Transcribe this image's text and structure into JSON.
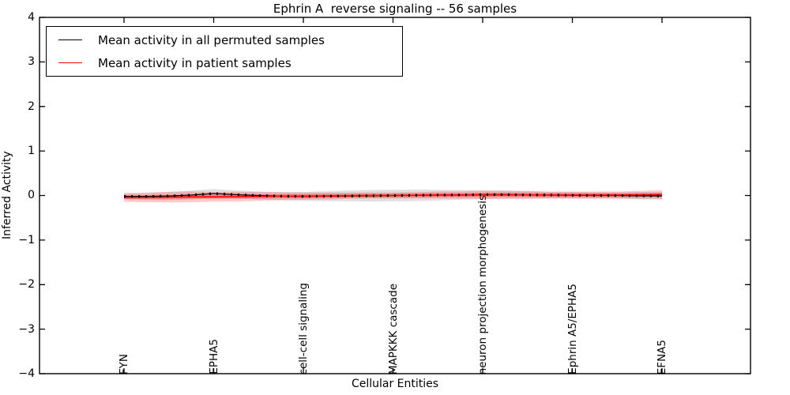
{
  "figure": {
    "title": "Ephrin A  reverse signaling -- 56 samples",
    "xlabel": "Cellular Entities",
    "ylabel": "Inferred Activity"
  },
  "chart_data": {
    "type": "line",
    "title": "Ephrin A  reverse signaling -- 56 samples",
    "xlabel": "Cellular Entities",
    "ylabel": "Inferred Activity",
    "ylim": [
      -4,
      4
    ],
    "ytick_values": [
      4,
      3,
      2,
      1,
      0,
      -1,
      -2,
      -3,
      -4
    ],
    "ytick_labels": [
      "4",
      "3",
      "2",
      "1",
      "0",
      "−1",
      "−2",
      "−3",
      "−4"
    ],
    "grid": false,
    "legend": {
      "position": "upper left",
      "entries": [
        {
          "label": "Mean activity in all permuted samples",
          "color": "#000000"
        },
        {
          "label": "Mean activity in patient samples",
          "color": "#ff0000"
        }
      ]
    },
    "categories": [
      "FYN",
      "EPHA5",
      "cell-cell signaling",
      "MAPKKK cascade",
      "neuron projection morphogenesis",
      "Ephrin A5/EPHA5",
      "EFNA5"
    ],
    "x": [
      0,
      0.25,
      0.5,
      0.75,
      1,
      1.25,
      1.5,
      1.75,
      2,
      2.25,
      2.5,
      2.75,
      3,
      3.25,
      3.5,
      3.75,
      4,
      4.25,
      4.5,
      4.75,
      5,
      5.25,
      5.5,
      5.75,
      6
    ],
    "series": [
      {
        "name": "Mean activity in all permuted samples",
        "color": "#000000",
        "line_style": "solid with dense square markers",
        "values": [
          -0.02,
          -0.02,
          -0.01,
          0.01,
          0.045,
          0.02,
          0,
          -0.015,
          -0.02,
          -0.015,
          -0.01,
          -0.005,
          0,
          0.005,
          0.01,
          0.015,
          0.02,
          0.02,
          0.015,
          0.01,
          0.005,
          0,
          0,
          -0.005,
          -0.01
        ],
        "band_halfwidth": [
          0.06,
          0.07,
          0.09,
          0.1,
          0.1,
          0.09,
          0.09,
          0.09,
          0.1,
          0.11,
          0.12,
          0.13,
          0.13,
          0.13,
          0.12,
          0.11,
          0.1,
          0.09,
          0.08,
          0.07,
          0.07,
          0.07,
          0.07,
          0.08,
          0.08
        ],
        "band_color": "#000000",
        "band_opacity": 0.12
      },
      {
        "name": "Mean activity in patient samples",
        "color": "#ff0000",
        "line_style": "solid",
        "values": [
          -0.04,
          -0.04,
          -0.035,
          -0.03,
          -0.03,
          -0.025,
          -0.02,
          -0.015,
          -0.015,
          -0.01,
          -0.005,
          0,
          0,
          0.005,
          0.01,
          0.01,
          0.015,
          0.015,
          0.015,
          0.01,
          0.01,
          0.01,
          0.01,
          0.015,
          0.02
        ],
        "band_halfwidth": [
          0.1,
          0.11,
          0.12,
          0.12,
          0.11,
          0.11,
          0.1,
          0.09,
          0.08,
          0.08,
          0.07,
          0.07,
          0.07,
          0.07,
          0.08,
          0.08,
          0.09,
          0.09,
          0.09,
          0.08,
          0.08,
          0.08,
          0.08,
          0.09,
          0.1
        ],
        "band_color": "#ff0000",
        "band_opacity": 0.2,
        "inner_band_halfwidth": 0.045,
        "inner_band_opacity": 0.28
      }
    ]
  }
}
